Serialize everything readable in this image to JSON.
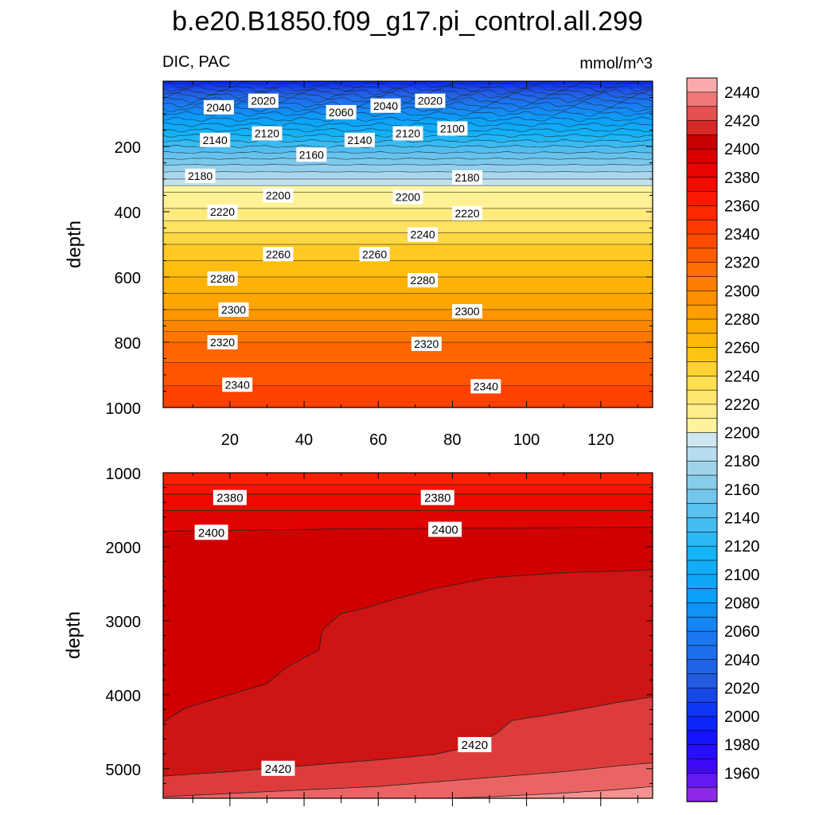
{
  "figure": {
    "title": "b.e20.B1850.f09_g17.pi_control.all.299",
    "left_label": "DIC, PAC",
    "right_label": "mmol/m^3"
  },
  "colors": {
    "deep_blue": "#0a32f0",
    "pale_yellow": "#fff6a0",
    "orange": "#ff9600",
    "dark_red": "#c80000"
  },
  "chart_data": [
    {
      "type": "contour",
      "panel": "upper",
      "variable": "DIC",
      "units": "mmol/m^3",
      "xlim": [
        2,
        134
      ],
      "ylim": [
        1000,
        0
      ],
      "x_ticks": [
        20,
        40,
        60,
        80,
        100,
        120
      ],
      "x_tick_labels": [
        "20",
        "40",
        "60",
        "80",
        "100",
        "120"
      ],
      "y_ticks": [
        200,
        400,
        600,
        800,
        1000
      ],
      "y_tick_labels": [
        "200",
        "400",
        "600",
        "800",
        "1000"
      ],
      "ylabel": "depth",
      "xlabel": "",
      "contour_interval": 20,
      "levels_profile": {
        "depth": [
          0,
          20,
          50,
          100,
          150,
          200,
          260,
          300,
          340,
          400,
          500,
          600,
          700,
          800,
          900,
          1000
        ],
        "dic": [
          2000,
          2018,
          2045,
          2080,
          2110,
          2140,
          2172,
          2190,
          2210,
          2222,
          2250,
          2270,
          2290,
          2320,
          2336,
          2348
        ]
      },
      "contour_labels": [
        {
          "text": "2040",
          "x": 17,
          "depth": 80
        },
        {
          "text": "2020",
          "x": 29,
          "depth": 60
        },
        {
          "text": "2060",
          "x": 50,
          "depth": 95
        },
        {
          "text": "2040",
          "x": 62,
          "depth": 75
        },
        {
          "text": "2020",
          "x": 74,
          "depth": 60
        },
        {
          "text": "2140",
          "x": 16,
          "depth": 180
        },
        {
          "text": "2120",
          "x": 30,
          "depth": 160
        },
        {
          "text": "2160",
          "x": 42,
          "depth": 225
        },
        {
          "text": "2140",
          "x": 55,
          "depth": 180
        },
        {
          "text": "2120",
          "x": 68,
          "depth": 160
        },
        {
          "text": "2100",
          "x": 80,
          "depth": 145
        },
        {
          "text": "2180",
          "x": 12,
          "depth": 290
        },
        {
          "text": "2180",
          "x": 84,
          "depth": 295
        },
        {
          "text": "2200",
          "x": 33,
          "depth": 350
        },
        {
          "text": "2200",
          "x": 68,
          "depth": 355
        },
        {
          "text": "2220",
          "x": 18,
          "depth": 400
        },
        {
          "text": "2220",
          "x": 84,
          "depth": 405
        },
        {
          "text": "2240",
          "x": 72,
          "depth": 470
        },
        {
          "text": "2260",
          "x": 33,
          "depth": 530
        },
        {
          "text": "2260",
          "x": 59,
          "depth": 530
        },
        {
          "text": "2280",
          "x": 18,
          "depth": 605
        },
        {
          "text": "2280",
          "x": 72,
          "depth": 610
        },
        {
          "text": "2300",
          "x": 21,
          "depth": 700
        },
        {
          "text": "2300",
          "x": 84,
          "depth": 705
        },
        {
          "text": "2320",
          "x": 18,
          "depth": 800
        },
        {
          "text": "2320",
          "x": 73,
          "depth": 805
        },
        {
          "text": "2340",
          "x": 22,
          "depth": 930
        },
        {
          "text": "2340",
          "x": 89,
          "depth": 935
        }
      ]
    },
    {
      "type": "contour",
      "panel": "lower",
      "variable": "DIC",
      "units": "mmol/m^3",
      "xlim": [
        2,
        134
      ],
      "ylim": [
        5400,
        1000
      ],
      "x_ticks": [
        20,
        40,
        60,
        80,
        100,
        120
      ],
      "y_ticks": [
        1000,
        2000,
        3000,
        4000,
        5000
      ],
      "y_tick_labels": [
        "1000",
        "2000",
        "3000",
        "4000",
        "5000"
      ],
      "ylabel": "depth",
      "contour_interval": 20,
      "flat_contours": [
        {
          "level": 2360,
          "depth": 1000
        },
        {
          "level": 2370,
          "depth": 1160
        },
        {
          "level": 2380,
          "depth": 1290
        },
        {
          "level": 2390,
          "depth": 1510
        }
      ],
      "sloped_contours": [
        {
          "level": 2400,
          "x": [
            2,
            20,
            40,
            60,
            80,
            100,
            120,
            134
          ],
          "depth": [
            1790,
            1780,
            1765,
            1755,
            1750,
            1745,
            1740,
            1735
          ]
        },
        {
          "level": 2410,
          "x": [
            2,
            8,
            20,
            30,
            35,
            40,
            44,
            45,
            50,
            55,
            65,
            75,
            90,
            110,
            125,
            134
          ],
          "depth": [
            4370,
            4180,
            4000,
            3850,
            3640,
            3500,
            3400,
            3120,
            2900,
            2850,
            2700,
            2570,
            2420,
            2350,
            2330,
            2310
          ]
        },
        {
          "level": 2420,
          "x": [
            2,
            20,
            40,
            60,
            75,
            85,
            92,
            96,
            110,
            125,
            134
          ],
          "depth": [
            5100,
            5040,
            4960,
            4880,
            4810,
            4700,
            4520,
            4350,
            4240,
            4100,
            4030
          ]
        },
        {
          "level": 2430,
          "x": [
            2,
            30,
            60,
            90,
            110,
            125,
            134
          ],
          "depth": [
            5380,
            5310,
            5240,
            5120,
            5040,
            4960,
            4920
          ]
        },
        {
          "level": 2440,
          "x": [
            2,
            60,
            90,
            110,
            125,
            134
          ],
          "depth": [
            5450,
            5430,
            5380,
            5330,
            5280,
            5240
          ]
        }
      ],
      "contour_labels": [
        {
          "text": "2380",
          "x": 20,
          "depth": 1340
        },
        {
          "text": "2380",
          "x": 76,
          "depth": 1340
        },
        {
          "text": "2400",
          "x": 15,
          "depth": 1810
        },
        {
          "text": "2400",
          "x": 78,
          "depth": 1770
        },
        {
          "text": "2420",
          "x": 33,
          "depth": 5000
        },
        {
          "text": "2420",
          "x": 86,
          "depth": 4680
        }
      ]
    }
  ],
  "colorbar": {
    "labels": [
      "2440",
      "2420",
      "2400",
      "2380",
      "2360",
      "2340",
      "2320",
      "2300",
      "2280",
      "2260",
      "2240",
      "2220",
      "2200",
      "2180",
      "2160",
      "2140",
      "2120",
      "2100",
      "2080",
      "2060",
      "2040",
      "2020",
      "2000",
      "1980",
      "1960"
    ],
    "levels_top_to_bottom": [
      2450,
      2440,
      2430,
      2420,
      2410,
      2400,
      2390,
      2380,
      2370,
      2360,
      2350,
      2340,
      2330,
      2320,
      2310,
      2300,
      2290,
      2280,
      2270,
      2260,
      2250,
      2240,
      2230,
      2220,
      2210,
      2200,
      2190,
      2180,
      2170,
      2160,
      2150,
      2140,
      2130,
      2120,
      2110,
      2100,
      2090,
      2080,
      2070,
      2060,
      2050,
      2040,
      2030,
      2020,
      2010,
      2000,
      1990,
      1980,
      1970,
      1960,
      1950
    ]
  }
}
